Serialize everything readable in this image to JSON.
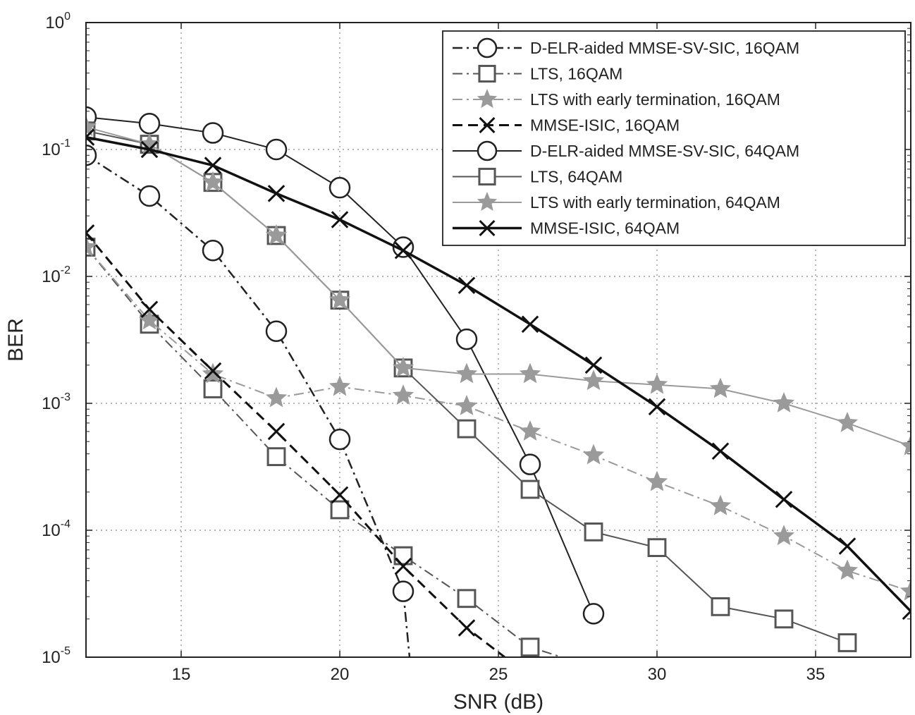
{
  "chart_data": {
    "type": "line",
    "title": "",
    "xlabel": "SNR (dB)",
    "ylabel": "BER",
    "x_scale": "linear",
    "y_scale": "log",
    "xlim": [
      12,
      38
    ],
    "ylim": [
      1e-05,
      1
    ],
    "grid": true,
    "legend_position": "top-right",
    "x_ticks": [
      15,
      20,
      25,
      30,
      35
    ],
    "x_tick_labels": [
      "15",
      "20",
      "25",
      "30",
      "35"
    ],
    "y_ticks": [
      1e-05,
      0.0001,
      0.001,
      0.01,
      0.1,
      1
    ],
    "y_tick_labels": [
      {
        "base": "10",
        "exp": "-5"
      },
      {
        "base": "10",
        "exp": "-4"
      },
      {
        "base": "10",
        "exp": "-3"
      },
      {
        "base": "10",
        "exp": "-2"
      },
      {
        "base": "10",
        "exp": "-1"
      },
      {
        "base": "10",
        "exp": "0"
      }
    ],
    "series": [
      {
        "name": "D-ELR-aided MMSE-SV-SIC, 16QAM",
        "color": "#222222",
        "linestyle": "dashdot",
        "marker": "circle",
        "width": 2.5,
        "x": [
          12,
          14,
          16,
          18,
          20,
          22,
          22.2
        ],
        "y": [
          0.09,
          0.043,
          0.016,
          0.0037,
          0.00052,
          3.3e-05,
          1e-05
        ]
      },
      {
        "name": "LTS, 16QAM",
        "color": "#555555",
        "linestyle": "dashdot",
        "marker": "square",
        "width": 2,
        "x": [
          12,
          14,
          16,
          18,
          20,
          22,
          24,
          26,
          27
        ],
        "y": [
          0.017,
          0.0042,
          0.0013,
          0.00038,
          0.000145,
          6.3e-05,
          2.9e-05,
          1.2e-05,
          1e-05
        ]
      },
      {
        "name": "LTS with early termination, 16QAM",
        "color": "#9a9a9a",
        "linestyle": "dashdot",
        "marker": "star",
        "width": 2,
        "x": [
          12,
          14,
          16,
          18,
          20,
          22,
          24,
          26,
          28,
          30,
          32,
          34,
          36,
          38
        ],
        "y": [
          0.017,
          0.0045,
          0.0017,
          0.0011,
          0.00135,
          0.00115,
          0.00095,
          0.0006,
          0.00039,
          0.00024,
          0.000155,
          9e-05,
          4.8e-05,
          3.3e-05
        ]
      },
      {
        "name": "MMSE-ISIC, 16QAM",
        "color": "#111111",
        "linestyle": "dashed",
        "marker": "x",
        "width": 3,
        "x": [
          12,
          14,
          16,
          18,
          20,
          22,
          24,
          25.2
        ],
        "y": [
          0.022,
          0.0055,
          0.0018,
          0.0006,
          0.00019,
          5.2e-05,
          1.7e-05,
          1e-05
        ]
      },
      {
        "name": "D-ELR-aided MMSE-SV-SIC, 64QAM",
        "color": "#222222",
        "linestyle": "solid",
        "marker": "circle",
        "width": 2,
        "x": [
          12,
          14,
          16,
          18,
          20,
          22,
          24,
          26,
          28
        ],
        "y": [
          0.18,
          0.16,
          0.135,
          0.1,
          0.05,
          0.017,
          0.0032,
          0.00033,
          2.2e-05
        ]
      },
      {
        "name": "LTS, 64QAM",
        "color": "#555555",
        "linestyle": "solid",
        "marker": "square",
        "width": 2,
        "x": [
          12,
          14,
          16,
          18,
          20,
          22,
          24,
          26,
          28,
          30,
          32,
          34,
          36
        ],
        "y": [
          0.14,
          0.11,
          0.055,
          0.021,
          0.0065,
          0.0019,
          0.00063,
          0.00021,
          9.7e-05,
          7.3e-05,
          2.5e-05,
          2e-05,
          1.3e-05
        ]
      },
      {
        "name": "LTS with early termination, 64QAM",
        "color": "#9a9a9a",
        "linestyle": "solid",
        "marker": "star",
        "width": 2,
        "x": [
          12,
          14,
          16,
          18,
          20,
          22,
          24,
          26,
          28,
          30,
          32,
          34,
          36,
          38
        ],
        "y": [
          0.15,
          0.11,
          0.055,
          0.021,
          0.0065,
          0.0019,
          0.0017,
          0.0017,
          0.0015,
          0.0014,
          0.0013,
          0.001,
          0.0007,
          0.00046
        ]
      },
      {
        "name": "MMSE-ISIC, 64QAM",
        "color": "#111111",
        "linestyle": "solid",
        "marker": "x",
        "width": 3.5,
        "x": [
          12,
          14,
          16,
          18,
          20,
          22,
          24,
          26,
          28,
          30,
          32,
          34,
          36,
          38
        ],
        "y": [
          0.125,
          0.1,
          0.075,
          0.045,
          0.028,
          0.016,
          0.0085,
          0.0042,
          0.002,
          0.00094,
          0.00042,
          0.000175,
          7.5e-05,
          2.3e-05
        ]
      }
    ]
  }
}
